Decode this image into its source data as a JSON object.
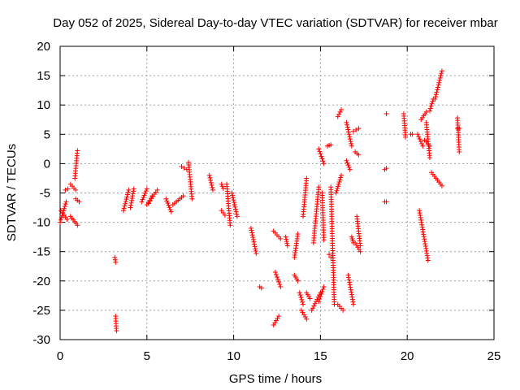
{
  "chart_data": {
    "type": "scatter",
    "title": "Day 052 of 2025, Sidereal Day-to-day VTEC variation (SDTVAR) for receiver mbar",
    "xlabel": "GPS time / hours",
    "ylabel": "SDTVAR / TECUs",
    "xlim": [
      0,
      25
    ],
    "ylim": [
      -30,
      20
    ],
    "xticks": [
      "0",
      "5",
      "10",
      "15",
      "20",
      "25"
    ],
    "yticks": [
      "-30",
      "-25",
      "-20",
      "-15",
      "-10",
      "-5",
      "0",
      "5",
      "10",
      "15",
      "20"
    ],
    "grid": true,
    "color": "#ff0000",
    "marker": "plus",
    "segments": [
      {
        "x": [
          0.0,
          0.35
        ],
        "y": [
          -10.0,
          -6.5
        ]
      },
      {
        "x": [
          0.05,
          0.4
        ],
        "y": [
          -8.0,
          -9.5
        ]
      },
      {
        "x": [
          0.3,
          0.45
        ],
        "y": [
          -4.5,
          -4.3
        ]
      },
      {
        "x": [
          0.6,
          0.9
        ],
        "y": [
          -3.5,
          -4.5
        ]
      },
      {
        "x": [
          0.85,
          1.0
        ],
        "y": [
          -2.5,
          2.2
        ]
      },
      {
        "x": [
          0.6,
          1.0
        ],
        "y": [
          -9.0,
          -10.5
        ]
      },
      {
        "x": [
          0.9,
          1.1
        ],
        "y": [
          -6.0,
          -6.5
        ]
      },
      {
        "x": [
          3.15,
          3.2
        ],
        "y": [
          -16.0,
          -16.8
        ]
      },
      {
        "x": [
          3.2,
          3.25
        ],
        "y": [
          -26.0,
          -28.5
        ]
      },
      {
        "x": [
          3.65,
          3.95
        ],
        "y": [
          -8.0,
          -4.5
        ]
      },
      {
        "x": [
          4.05,
          4.25
        ],
        "y": [
          -7.5,
          -4.3
        ]
      },
      {
        "x": [
          4.7,
          5.0
        ],
        "y": [
          -6.5,
          -4.3
        ]
      },
      {
        "x": [
          5.0,
          5.6
        ],
        "y": [
          -7.0,
          -4.5
        ]
      },
      {
        "x": [
          5.1,
          5.3
        ],
        "y": [
          -6.8,
          -5.5
        ]
      },
      {
        "x": [
          6.1,
          6.4
        ],
        "y": [
          -6.0,
          -8.2
        ]
      },
      {
        "x": [
          6.5,
          7.1
        ],
        "y": [
          -7.0,
          -5.5
        ]
      },
      {
        "x": [
          7.0,
          7.3
        ],
        "y": [
          -0.5,
          -1.0
        ]
      },
      {
        "x": [
          7.4,
          7.6
        ],
        "y": [
          0.2,
          -6.0
        ]
      },
      {
        "x": [
          8.6,
          8.8
        ],
        "y": [
          -2.0,
          -4.5
        ]
      },
      {
        "x": [
          9.3,
          9.4
        ],
        "y": [
          -3.5,
          -4.2
        ]
      },
      {
        "x": [
          9.3,
          9.5
        ],
        "y": [
          -8.0,
          -8.8
        ]
      },
      {
        "x": [
          9.6,
          9.8
        ],
        "y": [
          -3.5,
          -10.5
        ]
      },
      {
        "x": [
          9.9,
          10.2
        ],
        "y": [
          -5.0,
          -9.0
        ]
      },
      {
        "x": [
          11.0,
          11.3
        ],
        "y": [
          -11.0,
          -15.3
        ]
      },
      {
        "x": [
          11.5,
          11.6
        ],
        "y": [
          -21.0,
          -21.2
        ]
      },
      {
        "x": [
          12.3,
          12.7
        ],
        "y": [
          -11.5,
          -12.8
        ]
      },
      {
        "x": [
          12.4,
          12.7
        ],
        "y": [
          -18.5,
          -21.0
        ]
      },
      {
        "x": [
          12.3,
          12.6
        ],
        "y": [
          -27.5,
          -26.0
        ]
      },
      {
        "x": [
          13.0,
          13.1
        ],
        "y": [
          -12.5,
          -14.0
        ]
      },
      {
        "x": [
          13.5,
          13.7
        ],
        "y": [
          -16.0,
          -12.0
        ]
      },
      {
        "x": [
          13.5,
          13.7
        ],
        "y": [
          -19.0,
          -20.0
        ]
      },
      {
        "x": [
          13.8,
          14.0
        ],
        "y": [
          -22.0,
          -24.0
        ]
      },
      {
        "x": [
          13.9,
          14.2
        ],
        "y": [
          -25.0,
          -26.5
        ]
      },
      {
        "x": [
          14.0,
          14.2
        ],
        "y": [
          -9.0,
          -2.5
        ]
      },
      {
        "x": [
          14.2,
          14.4
        ],
        "y": [
          -22.0,
          -23.0
        ]
      },
      {
        "x": [
          14.5,
          15.0
        ],
        "y": [
          -25.0,
          -22.0
        ]
      },
      {
        "x": [
          14.6,
          14.9
        ],
        "y": [
          -13.5,
          -4.0
        ]
      },
      {
        "x": [
          14.9,
          15.2
        ],
        "y": [
          -23.5,
          -21.0
        ]
      },
      {
        "x": [
          14.9,
          15.2
        ],
        "y": [
          2.5,
          0.0
        ]
      },
      {
        "x": [
          15.1,
          15.2
        ],
        "y": [
          -5.0,
          -13.0
        ]
      },
      {
        "x": [
          15.4,
          15.6
        ],
        "y": [
          3.0,
          3.2
        ]
      },
      {
        "x": [
          15.5,
          15.6
        ],
        "y": [
          -15.5,
          -16.0
        ]
      },
      {
        "x": [
          15.6,
          15.8
        ],
        "y": [
          -4.0,
          -24.0
        ]
      },
      {
        "x": [
          15.9,
          16.2
        ],
        "y": [
          -5.0,
          -2.0
        ]
      },
      {
        "x": [
          16.0,
          16.3
        ],
        "y": [
          -24.0,
          -25.0
        ]
      },
      {
        "x": [
          16.0,
          16.2
        ],
        "y": [
          8.0,
          9.2
        ]
      },
      {
        "x": [
          16.6,
          16.9
        ],
        "y": [
          -19.0,
          -24.0
        ]
      },
      {
        "x": [
          16.5,
          16.8
        ],
        "y": [
          7.0,
          3.0
        ]
      },
      {
        "x": [
          16.5,
          16.7
        ],
        "y": [
          0.5,
          -1.0
        ]
      },
      {
        "x": [
          16.8,
          16.9
        ],
        "y": [
          -12.5,
          -13.5
        ]
      },
      {
        "x": [
          17.0,
          17.3
        ],
        "y": [
          -13.5,
          -15.0
        ]
      },
      {
        "x": [
          17.1,
          17.3
        ],
        "y": [
          -9.0,
          -14.0
        ]
      },
      {
        "x": [
          16.9,
          17.2
        ],
        "y": [
          5.5,
          6.0
        ]
      },
      {
        "x": [
          17.0,
          17.2
        ],
        "y": [
          2.0,
          1.5
        ]
      },
      {
        "x": [
          18.7,
          18.8
        ],
        "y": [
          -1.0,
          -0.8
        ]
      },
      {
        "x": [
          18.7,
          18.8
        ],
        "y": [
          -6.5,
          -6.5
        ]
      },
      {
        "x": [
          18.8,
          18.8
        ],
        "y": [
          8.5,
          8.5
        ]
      },
      {
        "x": [
          19.8,
          19.9
        ],
        "y": [
          8.5,
          4.5
        ]
      },
      {
        "x": [
          20.2,
          20.3
        ],
        "y": [
          5.0,
          5.0
        ]
      },
      {
        "x": [
          20.6,
          20.9
        ],
        "y": [
          5.0,
          3.0
        ]
      },
      {
        "x": [
          20.7,
          21.2
        ],
        "y": [
          -8.0,
          -16.5
        ]
      },
      {
        "x": [
          20.8,
          21.1
        ],
        "y": [
          7.5,
          8.8
        ]
      },
      {
        "x": [
          21.1,
          21.3
        ],
        "y": [
          7.0,
          1.0
        ]
      },
      {
        "x": [
          21.0,
          21.3
        ],
        "y": [
          4.0,
          3.0
        ]
      },
      {
        "x": [
          21.3,
          21.5
        ],
        "y": [
          9.0,
          11.0
        ]
      },
      {
        "x": [
          21.4,
          22.0
        ],
        "y": [
          -1.5,
          -3.8
        ]
      },
      {
        "x": [
          21.6,
          22.0
        ],
        "y": [
          11.0,
          15.8
        ]
      },
      {
        "x": [
          22.9,
          23.0
        ],
        "y": [
          7.8,
          2.0
        ]
      },
      {
        "x": [
          22.9,
          23.0
        ],
        "y": [
          6.0,
          6.0
        ]
      }
    ]
  }
}
